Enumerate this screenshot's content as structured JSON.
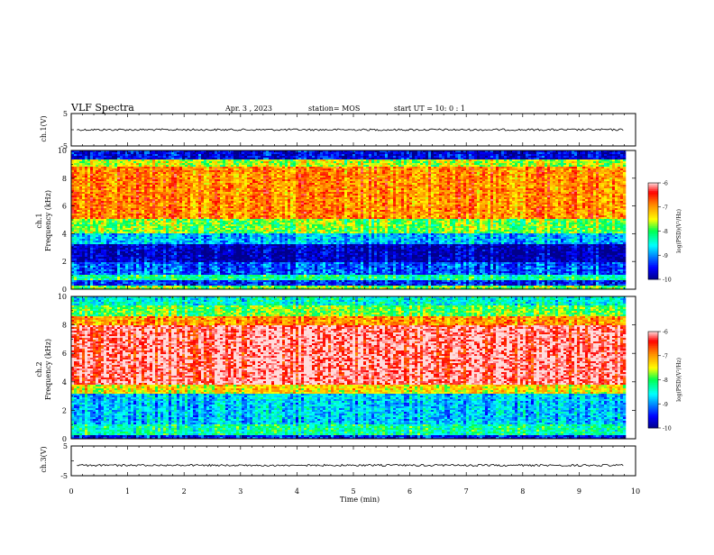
{
  "header": {
    "title": "VLF Spectra",
    "date": "Apr. 3 , 2023",
    "station": "station= MOS",
    "start": "start UT = 10: 0 : 1"
  },
  "chart_data": [
    {
      "type": "line",
      "panel": "ch1-voltage",
      "ylabel": "ch.1(V)",
      "ylim": [
        -5,
        5
      ],
      "yticks": [
        "5",
        "-5"
      ],
      "xlim": [
        0,
        10
      ],
      "series": [
        {
          "x": [
            0.1,
            9.8
          ],
          "values": [
            0,
            0
          ]
        }
      ]
    },
    {
      "type": "heatmap",
      "panel": "ch1-spectrogram",
      "ylabel": "ch.1\nFrequency (kHz)",
      "ylim": [
        0,
        10
      ],
      "yticks": [
        "0",
        "2",
        "4",
        "6",
        "8",
        "10"
      ],
      "xlim": [
        0,
        9.8
      ],
      "colorbar": {
        "label": "log(PSD)(V²/Hz)",
        "range": [
          -10,
          -6
        ],
        "ticks": [
          "-6",
          "-7",
          "-8",
          "-9",
          "-10"
        ]
      },
      "bands": [
        {
          "f": [
            0,
            0.3
          ],
          "level": -7.8
        },
        {
          "f": [
            0.3,
            0.7
          ],
          "level": -9.4
        },
        {
          "f": [
            0.7,
            1.0
          ],
          "level": -8.2
        },
        {
          "f": [
            1.0,
            2.0
          ],
          "level": -9.2
        },
        {
          "f": [
            2.0,
            3.2
          ],
          "level": -9.8
        },
        {
          "f": [
            3.2,
            4.0
          ],
          "level": -8.8
        },
        {
          "f": [
            4.0,
            5.0
          ],
          "level": -7.8
        },
        {
          "f": [
            5.0,
            8.8
          ],
          "level": -6.9
        },
        {
          "f": [
            8.8,
            9.3
          ],
          "level": -7.6
        },
        {
          "f": [
            9.3,
            10.0
          ],
          "level": -9.6
        }
      ]
    },
    {
      "type": "heatmap",
      "panel": "ch2-spectrogram",
      "ylabel": "ch.2\nFrequency (kHz)",
      "ylim": [
        0,
        10
      ],
      "yticks": [
        "0",
        "2",
        "4",
        "6",
        "8",
        "10"
      ],
      "xlim": [
        0,
        9.8
      ],
      "colorbar": {
        "label": "log(PSD)(V²/Hz)",
        "range": [
          -10,
          -6
        ],
        "ticks": [
          "-6",
          "-7",
          "-8",
          "-9",
          "-10"
        ]
      },
      "bands": [
        {
          "f": [
            0,
            0.3
          ],
          "level": -9.5
        },
        {
          "f": [
            0.3,
            1.0
          ],
          "level": -8.3
        },
        {
          "f": [
            1.0,
            3.2
          ],
          "level": -8.8
        },
        {
          "f": [
            3.2,
            3.8
          ],
          "level": -7.4
        },
        {
          "f": [
            3.8,
            8.0
          ],
          "level": -6.2
        },
        {
          "f": [
            8.0,
            8.6
          ],
          "level": -7.0
        },
        {
          "f": [
            8.6,
            9.4
          ],
          "level": -7.9
        },
        {
          "f": [
            9.4,
            10.0
          ],
          "level": -8.5
        }
      ]
    },
    {
      "type": "line",
      "panel": "ch3-voltage",
      "ylabel": "ch.3(V)",
      "ylim": [
        -5,
        5
      ],
      "yticks": [
        "5",
        "-5"
      ],
      "xlim": [
        0,
        10
      ],
      "xlabel": "Time (min)",
      "xticks": [
        "0",
        "1",
        "2",
        "3",
        "4",
        "5",
        "6",
        "7",
        "8",
        "9",
        "10"
      ],
      "series": [
        {
          "x": [
            0.1,
            9.8
          ],
          "values": [
            -1.5,
            -1.5
          ]
        }
      ]
    }
  ]
}
